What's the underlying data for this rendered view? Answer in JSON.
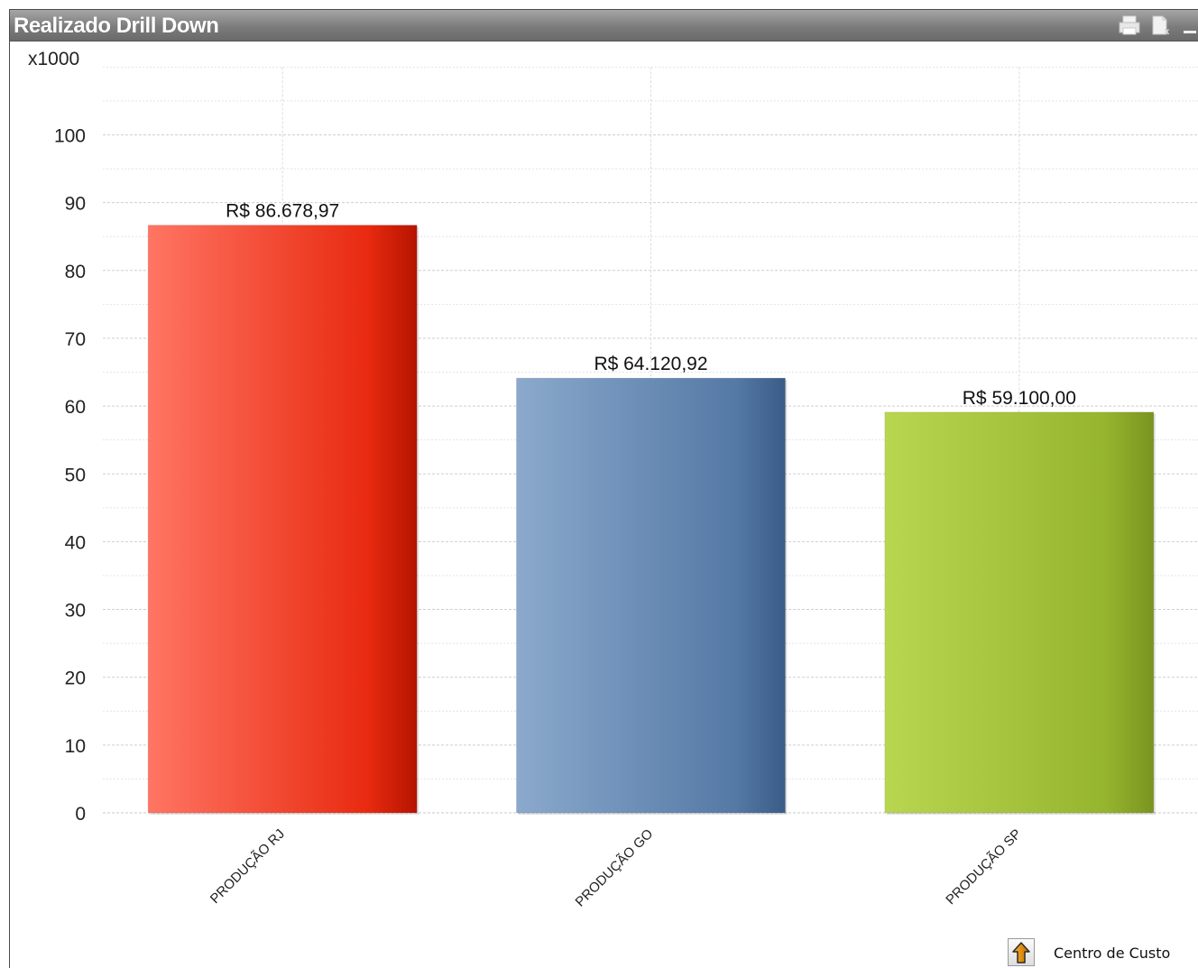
{
  "window": {
    "title": "Realizado Drill Down",
    "icons": [
      "print-icon",
      "export-excel-icon",
      "minimize-icon"
    ]
  },
  "chart_data": {
    "type": "bar",
    "title": "",
    "xlabel": "",
    "ylabel": "",
    "y_multiplier_label": "x1000",
    "categories": [
      "PRODUÇÃO RJ",
      "PRODUÇÃO GO",
      "PRODUÇÃO SP"
    ],
    "values": [
      86678.97,
      64120.92,
      59100.0
    ],
    "value_labels": [
      "R$ 86.678,97",
      "R$ 64.120,92",
      "R$ 59.100,00"
    ],
    "yticks": [
      0,
      10,
      20,
      30,
      40,
      50,
      60,
      70,
      80,
      90,
      100
    ],
    "ylim": [
      0,
      110
    ],
    "grid": true,
    "colors": [
      {
        "light": "#ff7563",
        "dark": "#b51400",
        "mid": "#e82a10"
      },
      {
        "light": "#8ba9cc",
        "dark": "#3a5c87",
        "mid": "#5479a5"
      },
      {
        "light": "#b9d650",
        "dark": "#7a9420",
        "mid": "#96b52e"
      }
    ]
  },
  "drill": {
    "label": "Centro de Custo",
    "icon": "drill-up-arrow-icon"
  }
}
